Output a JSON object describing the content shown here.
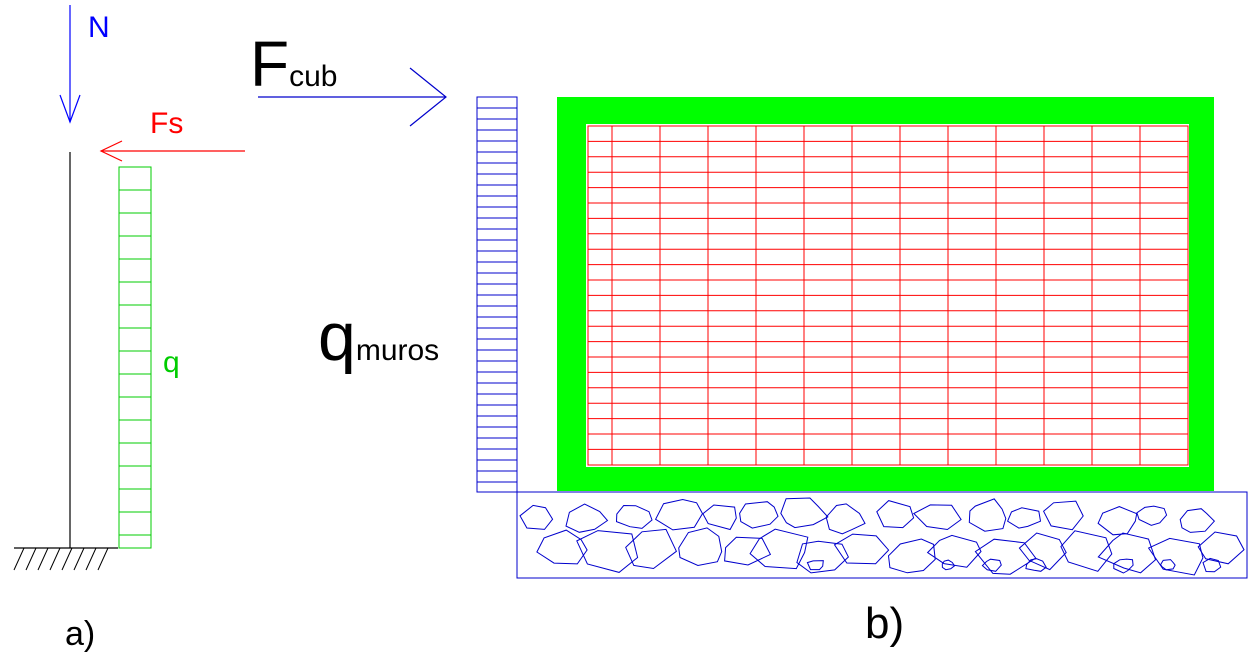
{
  "panel_a": {
    "axial_label": "N",
    "surface_force_label": "Fs",
    "distributed_load_label": "q",
    "caption": "a)"
  },
  "panel_b": {
    "roof_force_main": "F",
    "roof_force_sub": "cub",
    "wall_load_main": "q",
    "wall_load_sub": "muros",
    "caption": "b)"
  },
  "colors": {
    "structure": "#000000",
    "axial_arrow": "#0000ff",
    "surface_force": "#ff0000",
    "load_hatch_a": "#00cc00",
    "frame": "#00ff00",
    "brick": "#ff0000",
    "load_hatch_b": "#0000cc",
    "foundation": "#0000cc"
  }
}
